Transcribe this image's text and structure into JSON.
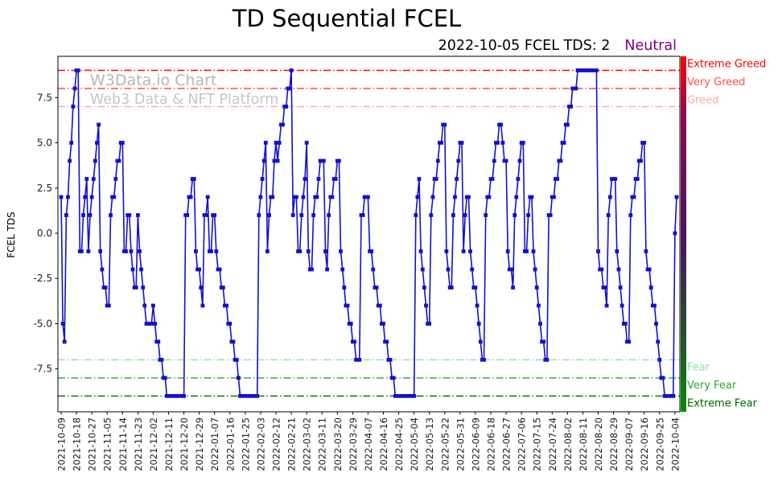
{
  "title": "TD Sequential FCEL",
  "subtitle": {
    "date_text": "2022-10-05 FCEL TDS: 2",
    "status": "Neutral",
    "status_color": "#800080"
  },
  "watermark": {
    "line1": "W3Data.io Chart",
    "line2": "Web3 Data & NFT Platform"
  },
  "chart_data": {
    "type": "line",
    "title": "TD Sequential FCEL",
    "ylabel": "FCEL TDS",
    "marker": "square",
    "line_color": "#1111cc",
    "ylim": [
      -9.87,
      9.78
    ],
    "y_ticks": [
      7.5,
      5.0,
      2.5,
      0.0,
      -2.5,
      -5.0,
      -7.5
    ],
    "x_tick_every": 9,
    "x_tick_labels": [
      "2021-10-09",
      "2021-10-18",
      "2021-10-27",
      "2021-11-05",
      "2021-11-14",
      "2021-11-23",
      "2021-12-02",
      "2021-12-11",
      "2021-12-20",
      "2021-12-29",
      "2022-01-07",
      "2022-01-16",
      "2022-01-25",
      "2022-02-03",
      "2022-02-12",
      "2022-02-21",
      "2022-03-02",
      "2022-03-11",
      "2022-03-20",
      "2022-03-29",
      "2022-04-07",
      "2022-04-16",
      "2022-04-25",
      "2022-05-04",
      "2022-05-13",
      "2022-05-22",
      "2022-05-31",
      "2022-06-09",
      "2022-06-18",
      "2022-06-27",
      "2022-07-06",
      "2022-07-15",
      "2022-07-24",
      "2022-08-02",
      "2022-08-11",
      "2022-08-20",
      "2022-08-29",
      "2022-09-07",
      "2022-09-16",
      "2022-09-25",
      "2022-10-04"
    ],
    "start_date": "2021-10-09",
    "last_value": 2,
    "values": [
      2,
      -5,
      -6,
      1,
      2,
      4,
      5,
      7,
      8,
      9,
      9,
      -1,
      -1,
      1,
      2,
      3,
      -1,
      1,
      2,
      3,
      4,
      5,
      6,
      -1,
      -2,
      -3,
      -3,
      -4,
      -4,
      1,
      2,
      2,
      3,
      4,
      4,
      5,
      5,
      -1,
      -1,
      1,
      1,
      -1,
      -2,
      -3,
      -3,
      1,
      -1,
      -2,
      -3,
      -4,
      -5,
      -5,
      -5,
      -5,
      -4,
      -5,
      -6,
      -6,
      -7,
      -7,
      -8,
      -8,
      -9,
      -9,
      -9,
      -9,
      -9,
      -9,
      -9,
      -9,
      -9,
      -9,
      -9,
      1,
      1,
      2,
      2,
      3,
      3,
      -1,
      -2,
      -2,
      -3,
      -4,
      1,
      1,
      2,
      -1,
      -1,
      1,
      1,
      -1,
      -2,
      -2,
      -3,
      -3,
      -4,
      -4,
      -5,
      -5,
      -6,
      -6,
      -7,
      -7,
      -8,
      -9,
      -9,
      -9,
      -9,
      -9,
      -9,
      -9,
      -9,
      -9,
      -9,
      -9,
      1,
      2,
      3,
      4,
      5,
      -1,
      1,
      2,
      2,
      4,
      5,
      4,
      5,
      6,
      6,
      7,
      7,
      8,
      8,
      9,
      1,
      2,
      2,
      -1,
      -1,
      1,
      2,
      3,
      5,
      -1,
      -2,
      -2,
      1,
      2,
      2,
      3,
      4,
      4,
      4,
      -1,
      -2,
      1,
      2,
      2,
      3,
      3,
      4,
      4,
      -1,
      -2,
      -3,
      -4,
      -4,
      -5,
      -5,
      -6,
      -6,
      -7,
      -7,
      -7,
      1,
      1,
      2,
      2,
      2,
      -1,
      -1,
      -2,
      -3,
      -3,
      -4,
      -4,
      -5,
      -5,
      -6,
      -6,
      -7,
      -7,
      -8,
      -8,
      -9,
      -9,
      -9,
      -9,
      -9,
      -9,
      -9,
      -9,
      -9,
      -9,
      -9,
      -9,
      1,
      2,
      3,
      -1,
      -2,
      -3,
      -4,
      -5,
      -5,
      1,
      2,
      3,
      3,
      4,
      5,
      5,
      6,
      6,
      -1,
      -2,
      -3,
      -3,
      1,
      2,
      3,
      4,
      5,
      5,
      -1,
      1,
      2,
      2,
      -1,
      -2,
      -3,
      -3,
      -4,
      -5,
      -6,
      -7,
      -7,
      1,
      2,
      2,
      3,
      3,
      4,
      5,
      5,
      6,
      6,
      5,
      4,
      4,
      -1,
      -2,
      -2,
      -3,
      1,
      2,
      3,
      4,
      5,
      5,
      -1,
      -1,
      1,
      2,
      2,
      -1,
      -2,
      -3,
      -4,
      -5,
      -6,
      -6,
      -7,
      -7,
      1,
      1,
      2,
      2,
      3,
      3,
      4,
      4,
      5,
      5,
      6,
      6,
      7,
      7,
      8,
      8,
      8,
      9,
      9,
      9,
      9,
      9,
      9,
      9,
      9,
      9,
      9,
      9,
      9,
      -1,
      -2,
      -2,
      -3,
      -3,
      -4,
      1,
      2,
      3,
      3,
      3,
      -1,
      -2,
      -3,
      -4,
      -5,
      -5,
      -6,
      -6,
      1,
      2,
      2,
      3,
      3,
      4,
      4,
      5,
      5,
      -1,
      -2,
      -2,
      -3,
      -4,
      -4,
      -5,
      -6,
      -7,
      -8,
      -8,
      -9,
      -9,
      -9,
      -9,
      -9,
      -9,
      0,
      2
    ],
    "thresholds": [
      {
        "value": 9,
        "label": "Extreme Greed",
        "color": "#ff0000"
      },
      {
        "value": 8,
        "label": "Very Greed",
        "color": "#ff4d4d"
      },
      {
        "value": 7,
        "label": "Greed",
        "color": "#ffaaaa"
      },
      {
        "value": -7,
        "label": "Fear",
        "color": "#96dd96"
      },
      {
        "value": -8,
        "label": "Very Fear",
        "color": "#2fa32f"
      },
      {
        "value": -9,
        "label": "Extreme Fear",
        "color": "#006400"
      }
    ],
    "colorbar": {
      "stops": [
        [
          0,
          "#ff0000"
        ],
        [
          0.05,
          "#e60016"
        ],
        [
          0.16,
          "#8f0a52"
        ],
        [
          0.5,
          "#4b1260"
        ],
        [
          0.84,
          "#1d5c26"
        ],
        [
          0.95,
          "#0b8011"
        ],
        [
          1,
          "#008c00"
        ]
      ]
    },
    "legend": "off",
    "grid": "off"
  }
}
